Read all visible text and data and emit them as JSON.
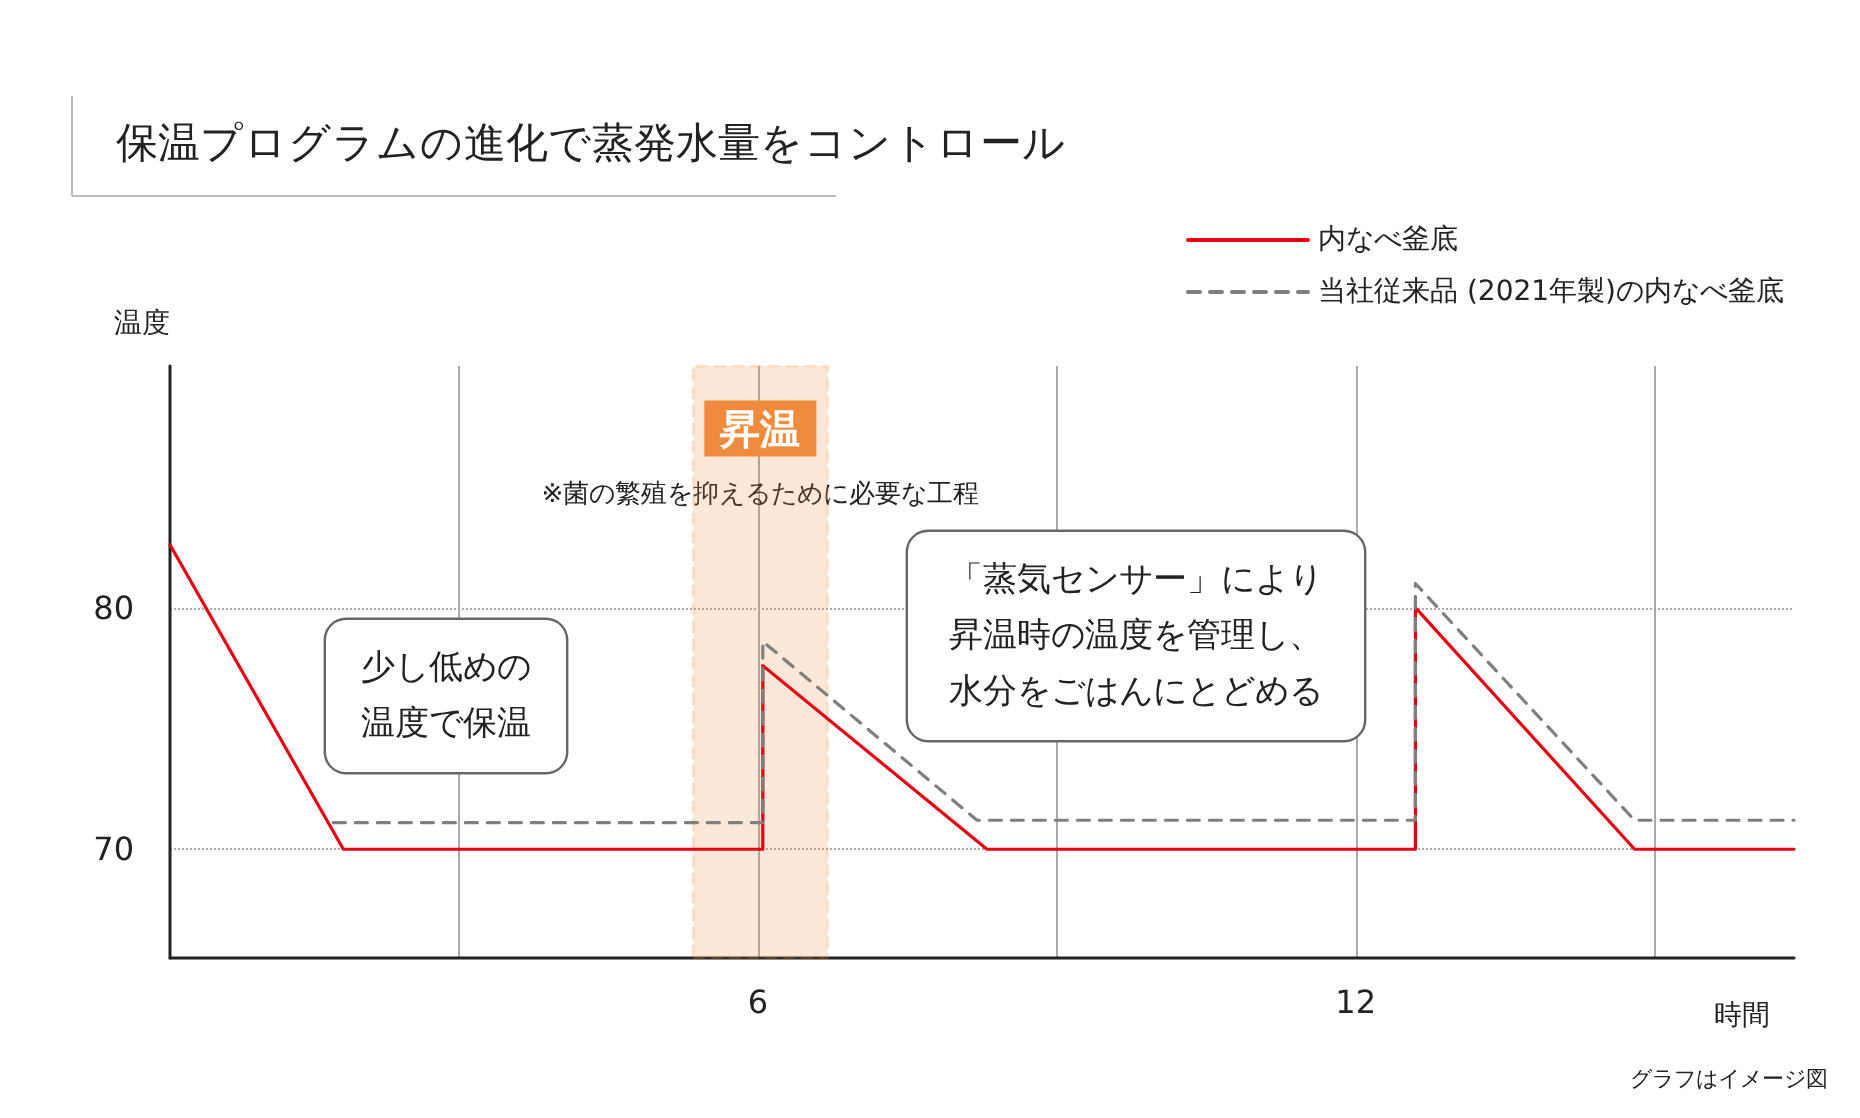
{
  "chart_data": {
    "type": "line",
    "title": "保温プログラムの進化で蒸発水量をコントロール",
    "xlabel": "時間",
    "ylabel": "温度",
    "xlim": [
      0.1,
      16.4
    ],
    "xticks": [
      {
        "value": 3,
        "label": null
      },
      6,
      {
        "value": 9,
        "label": null
      },
      12,
      {
        "value": 15,
        "label": null
      }
    ],
    "ylim": [
      65.5,
      90
    ],
    "yticks": [
      70,
      80
    ],
    "grid": true,
    "legend": "top right",
    "marker": "none",
    "series": [
      {
        "name": "内なべ釜底",
        "color": "#e60012",
        "line_style": "solid",
        "x": [
          0.1,
          1.84,
          6.05,
          6.05,
          8.3,
          12.6,
          12.6,
          14.8,
          16.4
        ],
        "values": [
          82.6,
          70,
          70,
          77.6,
          70,
          70,
          80,
          70,
          70
        ]
      },
      {
        "name": "当社従来品 (2021年製)の内なべ釜底",
        "color": "#7f7f7f",
        "line_style": "dashed",
        "x": [
          1.74,
          6.05,
          6.05,
          8.2,
          12.6,
          12.6,
          14.8,
          16.4
        ],
        "values": [
          71.1,
          71.1,
          78.6,
          71.2,
          71.2,
          81,
          71.2,
          71.2
        ]
      }
    ],
    "bands": [
      {
        "axis": "x",
        "from": 5.35,
        "to": 6.7,
        "label": "昇温",
        "color": "#f08a3c"
      }
    ],
    "annotations": [
      "※菌の繁殖を抑えるために必要な工程",
      "グラフはイメージ図",
      "少し低めの温度で保温",
      "「蒸気センサー」により昇温時の温度を管理し、水分をごはんにとどめる"
    ]
  }
}
